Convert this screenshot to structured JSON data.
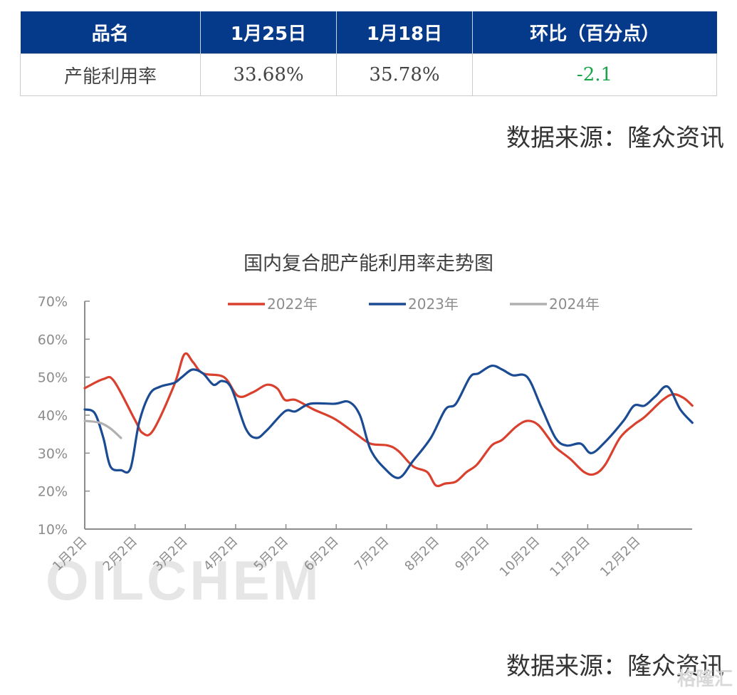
{
  "table": {
    "headers": [
      "品名",
      "1月25日",
      "1月18日",
      "环比（百分点）"
    ],
    "rows": [
      [
        "产能利用率",
        "33.68%",
        "35.78%",
        "-2.1"
      ]
    ],
    "header_bg": "#053a8a",
    "change_color": "#1aa24c"
  },
  "source_top": "数据来源：隆众资讯",
  "source_bottom": "数据来源：隆众资讯",
  "watermark": "OILCHEM",
  "corner_watermark": "格隆汇",
  "chart_data": {
    "type": "line",
    "title": "国内复合肥产能利用率走势图",
    "xlabel": "",
    "ylabel": "",
    "ylim": [
      10,
      70
    ],
    "yticks": [
      "70%",
      "60%",
      "50%",
      "40%",
      "30%",
      "20%",
      "10%"
    ],
    "x_tick_labels": [
      "1月2日",
      "2月2日",
      "3月2日",
      "4月2日",
      "5月2日",
      "6月2日",
      "7月2日",
      "8月2日",
      "9月2日",
      "10月2日",
      "11月2日",
      "12月2日"
    ],
    "legend_position": "top",
    "grid": false,
    "x_unit": "months since Jan 2 (0 = 1月2日, 11 = 12月2日)",
    "series": [
      {
        "name": "2022年",
        "color": "#d9412e",
        "points": [
          [
            0,
            47.1
          ],
          [
            0.37,
            49.5
          ],
          [
            0.58,
            49
          ],
          [
            1.0,
            38.7
          ],
          [
            1.15,
            35.3
          ],
          [
            1.36,
            36
          ],
          [
            1.78,
            48
          ],
          [
            1.98,
            56
          ],
          [
            2.15,
            54
          ],
          [
            2.35,
            51
          ],
          [
            2.77,
            50
          ],
          [
            3.05,
            45
          ],
          [
            3.34,
            46
          ],
          [
            3.62,
            48
          ],
          [
            3.83,
            47
          ],
          [
            3.98,
            44
          ],
          [
            4.19,
            44
          ],
          [
            4.55,
            41.5
          ],
          [
            4.97,
            39
          ],
          [
            5.4,
            35
          ],
          [
            5.68,
            32.5
          ],
          [
            6.03,
            32
          ],
          [
            6.24,
            30.5
          ],
          [
            6.53,
            26.5
          ],
          [
            6.81,
            25
          ],
          [
            6.98,
            21.5
          ],
          [
            7.17,
            22
          ],
          [
            7.38,
            22.5
          ],
          [
            7.59,
            25
          ],
          [
            7.8,
            27
          ],
          [
            8.09,
            32
          ],
          [
            8.3,
            33.5
          ],
          [
            8.58,
            37
          ],
          [
            8.8,
            38.5
          ],
          [
            9.01,
            37.5
          ],
          [
            9.22,
            34
          ],
          [
            9.36,
            31.5
          ],
          [
            9.65,
            28.5
          ],
          [
            9.93,
            25
          ],
          [
            10.14,
            24.5
          ],
          [
            10.35,
            27
          ],
          [
            10.64,
            34
          ],
          [
            10.92,
            37.5
          ],
          [
            11.13,
            39.5
          ],
          [
            11.49,
            44
          ],
          [
            11.7,
            45.5
          ],
          [
            11.91,
            44.5
          ],
          [
            12.08,
            42.5
          ]
        ]
      },
      {
        "name": "2023年",
        "color": "#1b4b93",
        "points": [
          [
            0,
            41.5
          ],
          [
            0.2,
            40.5
          ],
          [
            0.37,
            34
          ],
          [
            0.51,
            26.5
          ],
          [
            0.72,
            25.5
          ],
          [
            0.91,
            26
          ],
          [
            1.08,
            38
          ],
          [
            1.29,
            45.5
          ],
          [
            1.5,
            47.5
          ],
          [
            1.78,
            48.5
          ],
          [
            1.93,
            50
          ],
          [
            2.14,
            52
          ],
          [
            2.35,
            51
          ],
          [
            2.56,
            48
          ],
          [
            2.73,
            49
          ],
          [
            2.92,
            47
          ],
          [
            3.2,
            36.5
          ],
          [
            3.41,
            34
          ],
          [
            3.62,
            36
          ],
          [
            3.98,
            41
          ],
          [
            4.19,
            41
          ],
          [
            4.48,
            43
          ],
          [
            4.97,
            43
          ],
          [
            5.25,
            43.5
          ],
          [
            5.47,
            40
          ],
          [
            5.68,
            31
          ],
          [
            5.96,
            26
          ],
          [
            6.25,
            23.5
          ],
          [
            6.53,
            28
          ],
          [
            6.88,
            34
          ],
          [
            7.17,
            41.5
          ],
          [
            7.38,
            43
          ],
          [
            7.66,
            50
          ],
          [
            7.83,
            51
          ],
          [
            8.09,
            53
          ],
          [
            8.3,
            52
          ],
          [
            8.51,
            50.5
          ],
          [
            8.8,
            50
          ],
          [
            9.08,
            42
          ],
          [
            9.36,
            34
          ],
          [
            9.58,
            32
          ],
          [
            9.86,
            32.5
          ],
          [
            10.07,
            30
          ],
          [
            10.35,
            33
          ],
          [
            10.71,
            38.5
          ],
          [
            10.92,
            42.5
          ],
          [
            11.13,
            42.5
          ],
          [
            11.35,
            45
          ],
          [
            11.59,
            47.5
          ],
          [
            11.84,
            41.5
          ],
          [
            12.08,
            38
          ]
        ]
      },
      {
        "name": "2024年",
        "color": "#b0b0b0",
        "points": [
          [
            0,
            38.5
          ],
          [
            0.3,
            38
          ],
          [
            0.51,
            36.5
          ],
          [
            0.72,
            34
          ]
        ]
      }
    ]
  }
}
